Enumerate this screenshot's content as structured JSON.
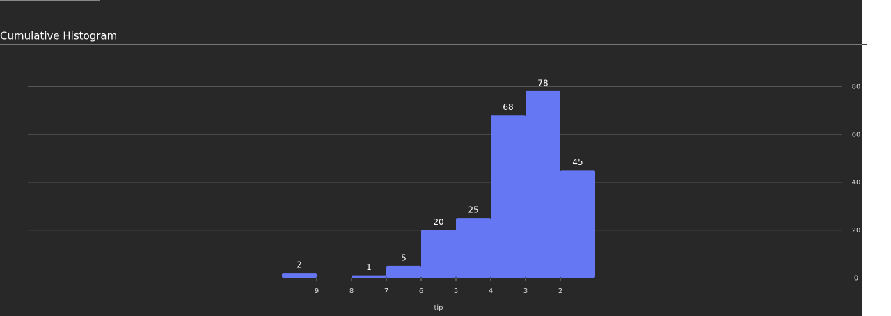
{
  "chart_data": {
    "type": "histogram",
    "title": "Cumulative Histogram",
    "x_label": "tip",
    "bins": [
      1,
      2,
      3,
      4,
      5,
      6,
      7,
      8,
      9,
      10
    ],
    "counts": [
      45,
      78,
      68,
      25,
      20,
      5,
      1,
      0,
      2
    ],
    "color": "#6577f3",
    "xlim": [
      17.3,
      -6.1
    ],
    "xticks": [
      2,
      3,
      4,
      5,
      6,
      7,
      8,
      9
    ],
    "ylim": [
      0,
      80
    ],
    "yticks": [
      0,
      20,
      40,
      60,
      80
    ],
    "y_axis_side": "right",
    "grid": true
  }
}
